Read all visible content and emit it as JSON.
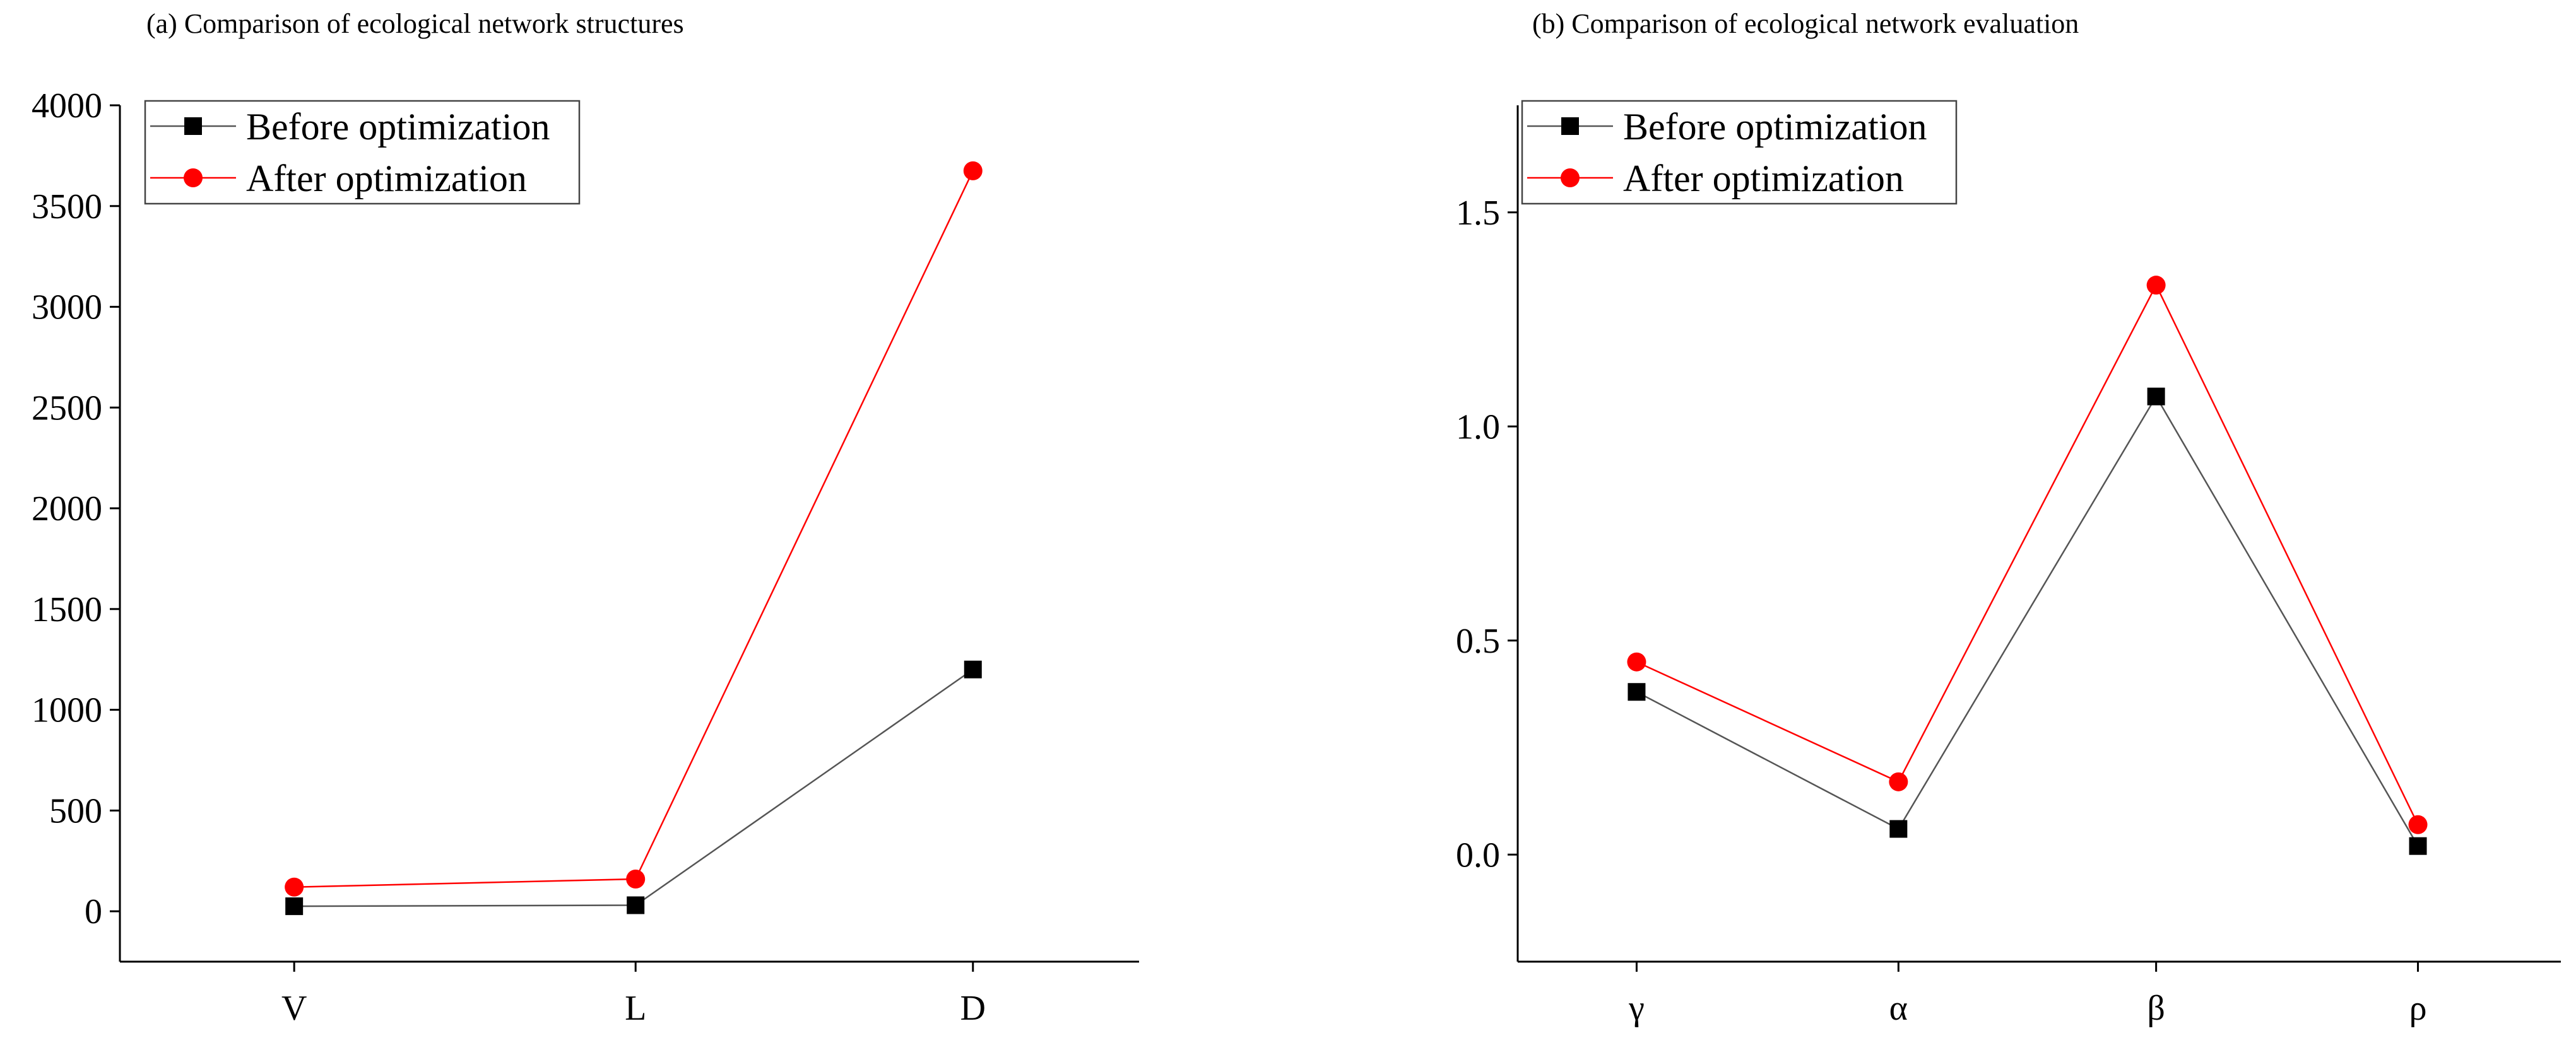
{
  "chart_data": [
    {
      "type": "line",
      "title": "(a) Comparison of ecological network structures",
      "categories": [
        "V",
        "L",
        "D"
      ],
      "ylim": [
        -250,
        4000
      ],
      "yticks": [
        0,
        500,
        1000,
        1500,
        2000,
        2500,
        3000,
        3500,
        4000
      ],
      "ytick_labels": [
        "0",
        "500",
        "1000",
        "1500",
        "2000",
        "2500",
        "3000",
        "3500",
        "4000"
      ],
      "grid": false,
      "legend_position": "top-left",
      "series": [
        {
          "name": "Before optimization",
          "color": "#000000",
          "marker": "square",
          "line_color": "#555555",
          "values": [
            25,
            30,
            1200
          ]
        },
        {
          "name": "After optimization",
          "color": "#ff0000",
          "marker": "circle",
          "line_color": "#ff0000",
          "values": [
            120,
            160,
            3675
          ]
        }
      ]
    },
    {
      "type": "line",
      "title": "(b) Comparison of ecological network evaluation",
      "categories": [
        "γ",
        "α",
        "β",
        "ρ"
      ],
      "ylim": [
        -0.25,
        1.75
      ],
      "yticks": [
        0.0,
        0.5,
        1.0,
        1.5
      ],
      "ytick_labels": [
        "0.0",
        "0.5",
        "1.0",
        "1.5"
      ],
      "grid": false,
      "legend_position": "top-left",
      "series": [
        {
          "name": "Before optimization",
          "color": "#000000",
          "marker": "square",
          "line_color": "#555555",
          "values": [
            0.38,
            0.06,
            1.07,
            0.02
          ]
        },
        {
          "name": "After optimization",
          "color": "#ff0000",
          "marker": "circle",
          "line_color": "#ff0000",
          "values": [
            0.45,
            0.17,
            1.33,
            0.07
          ]
        }
      ]
    }
  ]
}
